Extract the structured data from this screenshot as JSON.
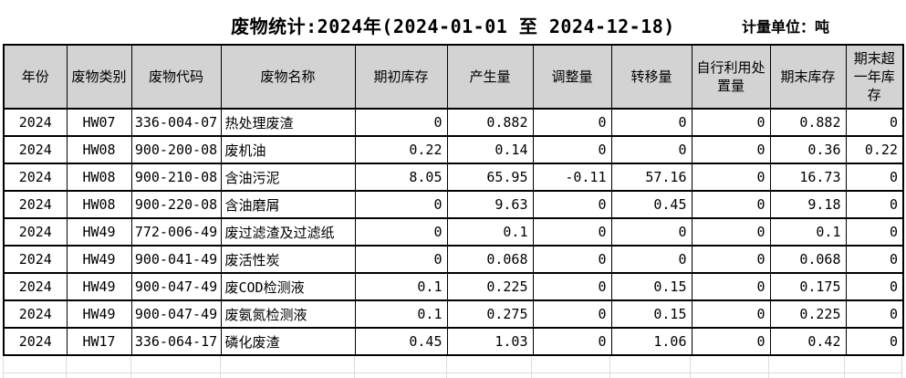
{
  "title": "废物统计:2024年(2024-01-01 至 2024-12-18)",
  "unit_label": "计量单位：吨",
  "colors": {
    "header_bg": "#d3d3d3",
    "grid_border": "#000000",
    "light_grid": "#dcdcdc"
  },
  "table": {
    "columns": [
      "年份",
      "废物类别",
      "废物代码",
      "废物名称",
      "期初库存",
      "产生量",
      "调整量",
      "转移量",
      "自行利用处置量",
      "期末库存",
      "期末超一年库存"
    ],
    "rows": [
      [
        "2024",
        "HW07",
        "336-004-07",
        "热处理废渣",
        "0",
        "0.882",
        "0",
        "0",
        "0",
        "0.882",
        "0"
      ],
      [
        "2024",
        "HW08",
        "900-200-08",
        "废机油",
        "0.22",
        "0.14",
        "0",
        "0",
        "0",
        "0.36",
        "0.22"
      ],
      [
        "2024",
        "HW08",
        "900-210-08",
        "含油污泥",
        "8.05",
        "65.95",
        "-0.11",
        "57.16",
        "0",
        "16.73",
        "0"
      ],
      [
        "2024",
        "HW08",
        "900-220-08",
        "含油磨屑",
        "0",
        "9.63",
        "0",
        "0.45",
        "0",
        "9.18",
        "0"
      ],
      [
        "2024",
        "HW49",
        "772-006-49",
        "废过滤渣及过滤纸",
        "0",
        "0.1",
        "0",
        "0",
        "0",
        "0.1",
        "0"
      ],
      [
        "2024",
        "HW49",
        "900-041-49",
        "废活性炭",
        "0",
        "0.068",
        "0",
        "0",
        "0",
        "0.068",
        "0"
      ],
      [
        "2024",
        "HW49",
        "900-047-49",
        "废COD检测液",
        "0.1",
        "0.225",
        "0",
        "0.15",
        "0",
        "0.175",
        "0"
      ],
      [
        "2024",
        "HW49",
        "900-047-49",
        "废氨氮检测液",
        "0.1",
        "0.275",
        "0",
        "0.15",
        "0",
        "0.225",
        "0"
      ],
      [
        "2024",
        "HW17",
        "336-064-17",
        "磷化废渣",
        "0.45",
        "1.03",
        "0",
        "1.06",
        "0",
        "0.42",
        "0"
      ]
    ]
  }
}
